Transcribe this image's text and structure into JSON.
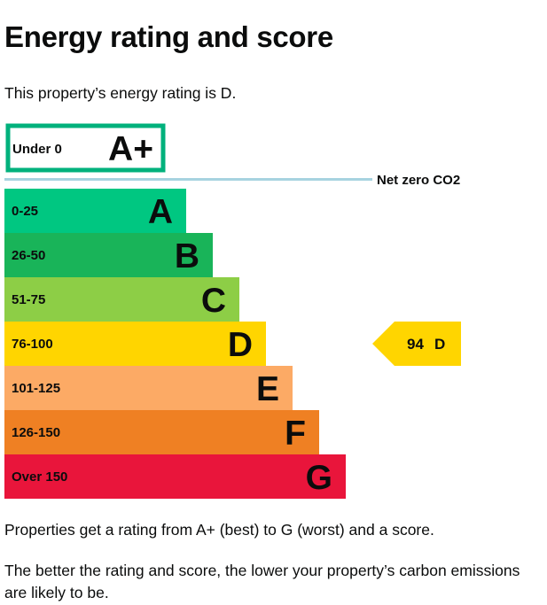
{
  "page": {
    "title": "Energy rating and score",
    "intro": "This property’s energy rating is D.",
    "footer_1": "Properties get a rating from A+ (best) to G (worst) and a score.",
    "footer_2": "The better the rating and score, the lower your property’s carbon emissions are likely to be."
  },
  "chart_data": {
    "type": "bar",
    "orientation": "horizontal",
    "categories": [
      "A+",
      "A",
      "B",
      "C",
      "D",
      "E",
      "F",
      "G"
    ],
    "bands": [
      {
        "rating": "A+",
        "range": "Under 0",
        "color": "#ffffff",
        "border": "#00b17c"
      },
      {
        "rating": "A",
        "range": "0-25",
        "color": "#00c781"
      },
      {
        "rating": "B",
        "range": "26-50",
        "color": "#19b459"
      },
      {
        "rating": "C",
        "range": "51-75",
        "color": "#8dce46"
      },
      {
        "rating": "D",
        "range": "76-100",
        "color": "#ffd500"
      },
      {
        "rating": "E",
        "range": "101-125",
        "color": "#fcaa65"
      },
      {
        "rating": "F",
        "range": "126-150",
        "color": "#ef8023"
      },
      {
        "rating": "G",
        "range": "Over 150",
        "color": "#e9153b"
      }
    ],
    "net_zero": {
      "label": "Net zero CO2",
      "color": "#a7d3e0"
    },
    "current": {
      "score": 94,
      "rating": "D",
      "color": "#ffd500"
    }
  }
}
